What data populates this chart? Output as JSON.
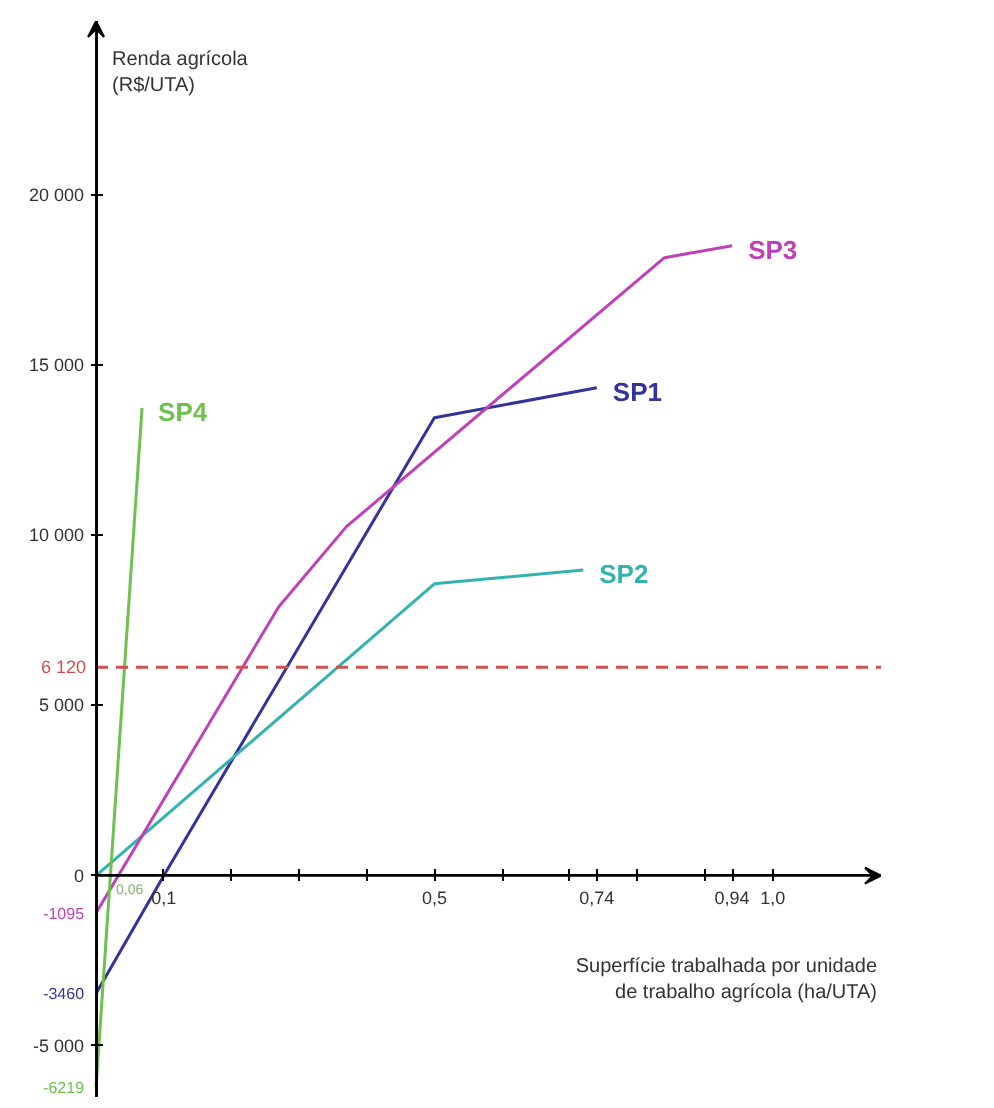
{
  "chart_data": {
    "type": "line",
    "xlabel": "Superfície trabalhada por unidade de trabalho agrícola (ha/UTA)",
    "ylabel": "Renda agrícola (R$/UTA)",
    "xlim": [
      0,
      1.16
    ],
    "ylim": [
      -6500,
      25100
    ],
    "xticks": [
      {
        "value": 0.1,
        "label": "0,1"
      },
      {
        "value": 0.2,
        "label": null
      },
      {
        "value": 0.3,
        "label": null
      },
      {
        "value": 0.4,
        "label": null
      },
      {
        "value": 0.5,
        "label": "0,5"
      },
      {
        "value": 0.6,
        "label": null
      },
      {
        "value": 0.7,
        "label": null
      },
      {
        "value": 0.74,
        "label": "0,74"
      },
      {
        "value": 0.8,
        "label": null
      },
      {
        "value": 0.9,
        "label": null
      },
      {
        "value": 0.94,
        "label": "0,94"
      },
      {
        "value": 1.0,
        "label": "1,0"
      }
    ],
    "yticks": [
      {
        "value": -6219,
        "label": "-6219"
      },
      {
        "value": -5000,
        "label": "-5 000"
      },
      {
        "value": -3460,
        "label": "-3460"
      },
      {
        "value": -1095,
        "label": "-1095"
      },
      0,
      {
        "value": 5000,
        "label": "5 000"
      },
      {
        "value": 10000,
        "label": "10 000"
      },
      {
        "value": 15000,
        "label": "15 000"
      },
      {
        "value": 20000,
        "label": "20 000"
      }
    ],
    "grid": false,
    "series": [
      {
        "name": "SP1",
        "color": "#33339a",
        "x": [
          0,
          0.1,
          0.5,
          0.74
        ],
        "values": [
          -3460,
          0,
          13450,
          14330
        ]
      },
      {
        "name": "SP2",
        "color": "#33b3b0",
        "x": [
          0,
          0.5,
          0.72
        ],
        "values": [
          0,
          8570,
          8980
        ]
      },
      {
        "name": "SP3",
        "color": "#c040b8",
        "x": [
          0,
          0.27,
          0.37,
          0.84,
          0.94
        ],
        "values": [
          -1095,
          7900,
          10250,
          18150,
          18500
        ]
      },
      {
        "name": "SP4",
        "color": "#70c050",
        "x": [
          0,
          0.068
        ],
        "values": [
          -6219,
          13740
        ]
      }
    ],
    "ref_lines": [
      {
        "axis": "y",
        "value": 6120,
        "label": "6 120",
        "color": "#d05050",
        "line_style": "dashed"
      }
    ],
    "annotations": [
      "0,06"
    ]
  }
}
